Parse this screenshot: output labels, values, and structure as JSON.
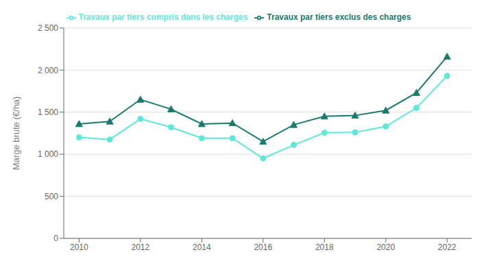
{
  "chart_data": {
    "type": "line",
    "x": [
      2010,
      2011,
      2012,
      2013,
      2014,
      2015,
      2016,
      2017,
      2018,
      2019,
      2020,
      2021,
      2022
    ],
    "series": [
      {
        "name": "Travaux par tiers compris dans les charges",
        "color": "#5de8d8",
        "marker": "circle",
        "values": [
          1200,
          1175,
          1420,
          1320,
          1190,
          1190,
          950,
          1110,
          1255,
          1260,
          1330,
          1550,
          1930
        ]
      },
      {
        "name": "Travaux par tiers exclus des charges",
        "color": "#1a7a6e",
        "marker": "triangle",
        "values": [
          1360,
          1390,
          1650,
          1535,
          1360,
          1370,
          1150,
          1350,
          1450,
          1460,
          1520,
          1730,
          2160
        ]
      }
    ],
    "ylabel": "Marge brute (€/ha)",
    "xlim": [
      2009.5,
      2022.8
    ],
    "xticks": [
      2010,
      2012,
      2014,
      2016,
      2018,
      2020,
      2022
    ],
    "ylim": [
      0,
      2500
    ],
    "yticks": [
      0,
      500,
      {
        "value": 1000,
        "label": "1 000"
      },
      {
        "value": 1500,
        "label": "1 500"
      },
      {
        "value": 2000,
        "label": "2 000"
      },
      {
        "value": 2500,
        "label": "2 500"
      }
    ],
    "grid": "y",
    "legend": "top"
  }
}
